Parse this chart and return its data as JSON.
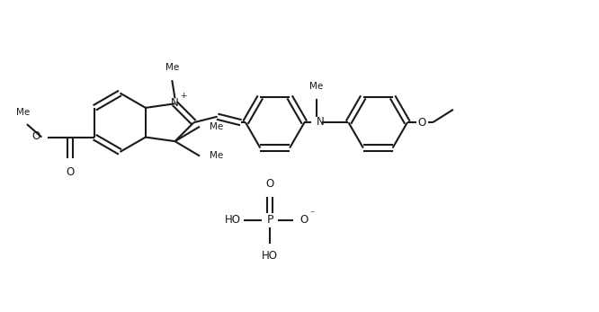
{
  "bg_color": "#ffffff",
  "line_color": "#1a1a1a",
  "line_width": 1.5,
  "font_size": 8.5,
  "fig_width": 6.66,
  "fig_height": 3.47,
  "dpi": 100,
  "xlim": [
    0,
    10
  ],
  "ylim": [
    0,
    5.22
  ]
}
